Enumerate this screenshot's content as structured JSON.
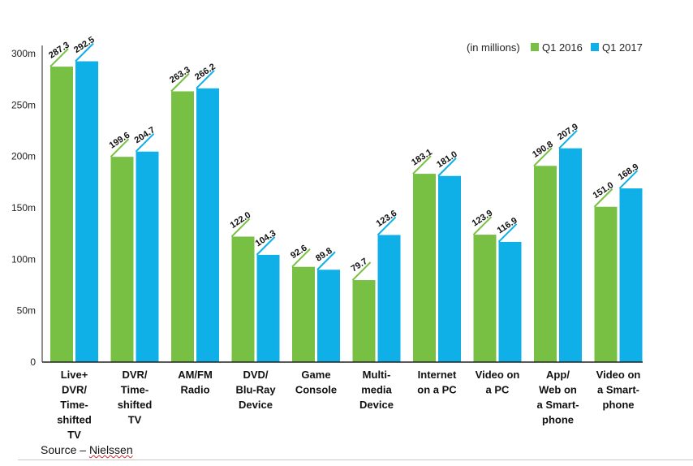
{
  "chart_data": {
    "type": "bar",
    "unit_note": "(in millions)",
    "categories": [
      [
        "Live+",
        "DVR/",
        "Time-",
        "shifted",
        "TV"
      ],
      [
        "DVR/",
        "Time-",
        "shifted",
        "TV"
      ],
      [
        "AM/FM",
        "Radio"
      ],
      [
        "DVD/",
        "Blu-Ray",
        "Device"
      ],
      [
        "Game",
        "Console"
      ],
      [
        "Multi-",
        "media",
        "Device"
      ],
      [
        "Internet",
        "on a PC"
      ],
      [
        "Video on",
        "a PC"
      ],
      [
        "App/",
        "Web on",
        "a Smart-",
        "phone"
      ],
      [
        "Video on",
        "a Smart-",
        "phone"
      ]
    ],
    "series": [
      {
        "name": "Q1 2016",
        "color": "#78c043",
        "values": [
          287.3,
          199.6,
          263.3,
          122.0,
          92.6,
          79.7,
          183.1,
          123.9,
          190.8,
          151.0
        ],
        "labels": [
          "287.3",
          "199.6",
          "263.3",
          "122.0",
          "92.6",
          "79.7",
          "183.1",
          "123.9",
          "190.8",
          "151.0"
        ]
      },
      {
        "name": "Q1 2017",
        "color": "#0fb0e8",
        "values": [
          292.5,
          204.7,
          266.2,
          104.3,
          89.8,
          123.6,
          181.0,
          116.9,
          207.9,
          168.9
        ],
        "labels": [
          "292.5",
          "204.7",
          "266.2",
          "104.3",
          "89.8",
          "123.6",
          "181.0",
          "116.9",
          "207.9",
          "168.9"
        ]
      }
    ],
    "ylim": [
      0,
      300
    ],
    "yticks": [
      0,
      50,
      100,
      150,
      200,
      250,
      300
    ],
    "yticklabels": [
      "0",
      "50m",
      "100m",
      "150m",
      "200m",
      "250m",
      "300m"
    ],
    "legend_position": "top-right",
    "grid": false
  },
  "source": {
    "prefix": "Source – ",
    "name": "Nielssen"
  }
}
